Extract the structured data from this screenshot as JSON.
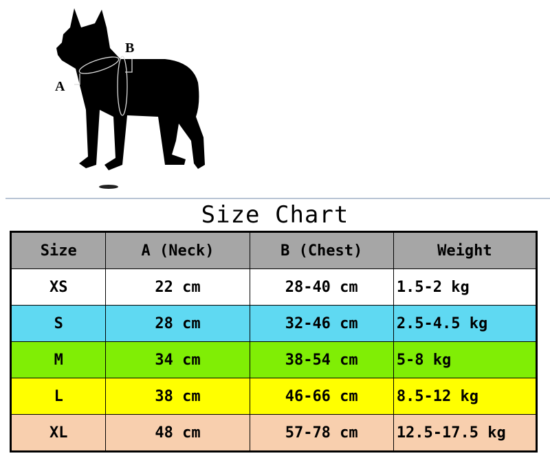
{
  "diagram": {
    "label_a": "A",
    "label_b": "B"
  },
  "title": "Size Chart",
  "table": {
    "headers": [
      "Size",
      "A (Neck)",
      "B (Chest)",
      "Weight"
    ],
    "rows": [
      {
        "size": "XS",
        "neck": "22 cm",
        "chest": "28-40 cm",
        "weight": "1.5-2 kg",
        "color": "#ffffff"
      },
      {
        "size": "S",
        "neck": "28 cm",
        "chest": "32-46 cm",
        "weight": "2.5-4.5 kg",
        "color": "#5fd9f2"
      },
      {
        "size": "M",
        "neck": "34 cm",
        "chest": "38-54 cm",
        "weight": "5-8 kg",
        "color": "#80ee05"
      },
      {
        "size": "L",
        "neck": "38 cm",
        "chest": "46-66 cm",
        "weight": "8.5-12 kg",
        "color": "#ffff00"
      },
      {
        "size": "XL",
        "neck": "48 cm",
        "chest": "57-78 cm",
        "weight": "12.5-17.5 kg",
        "color": "#f8cfae"
      }
    ],
    "header_color": "#a6a6a6"
  }
}
